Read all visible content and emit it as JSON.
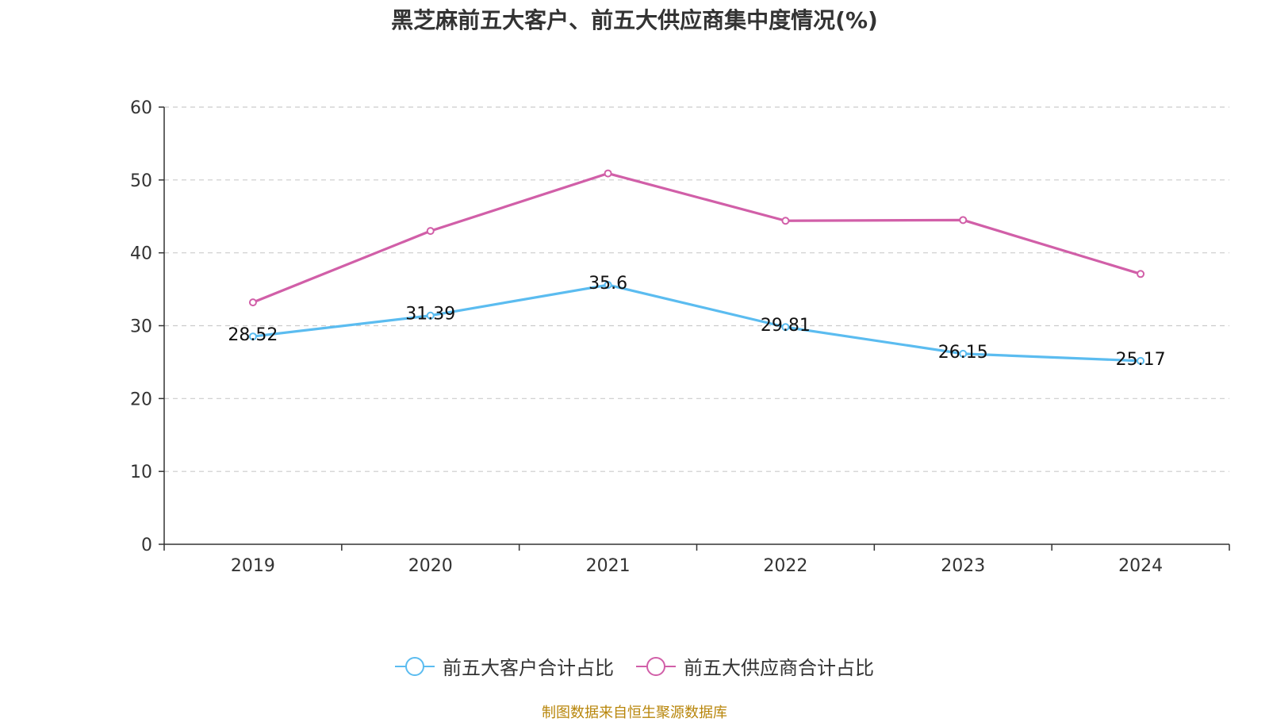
{
  "chart_data": {
    "type": "line",
    "title": "黑芝麻前五大客户、前五大供应商集中度情况(%)",
    "categories": [
      "2019",
      "2020",
      "2021",
      "2022",
      "2023",
      "2024"
    ],
    "ylim": [
      0,
      60
    ],
    "yticks": [
      0,
      10,
      20,
      30,
      40,
      50,
      60
    ],
    "grid": true,
    "legend_position": "bottom",
    "series": [
      {
        "name": "前五大客户合计占比",
        "color": "#5bbcf0",
        "values": [
          28.52,
          31.39,
          35.6,
          29.81,
          26.15,
          25.17
        ],
        "labels": [
          "28.52",
          "31.39",
          "35.6",
          "29.81",
          "26.15",
          "25.17"
        ]
      },
      {
        "name": "前五大供应商合计占比",
        "color": "#d15fa8",
        "values": [
          33.2,
          43.0,
          50.9,
          44.4,
          44.5,
          37.1
        ]
      }
    ]
  },
  "source": "制图数据来自恒生聚源数据库"
}
